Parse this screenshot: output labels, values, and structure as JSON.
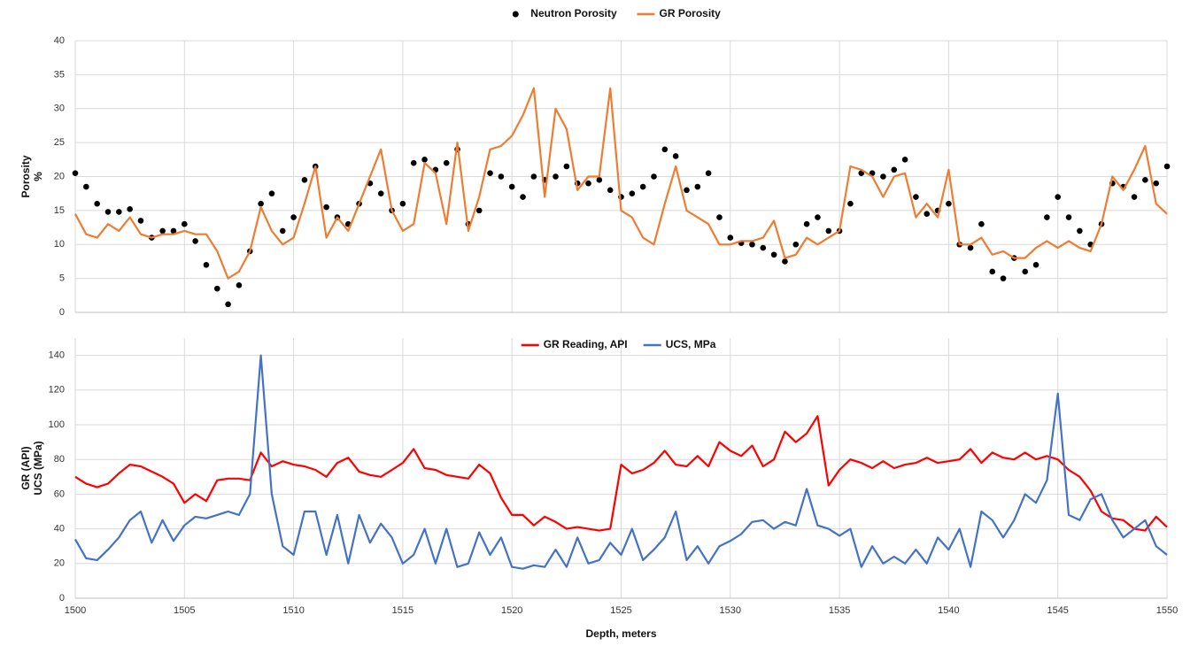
{
  "chart_data": [
    {
      "type": "line",
      "y_label": "Porosity",
      "y_unit": "%",
      "legend": "top-outside",
      "grid": true,
      "xlim": [
        1500,
        1550
      ],
      "xticks": [
        1500,
        1505,
        1510,
        1515,
        1520,
        1525,
        1530,
        1535,
        1540,
        1545,
        1550
      ],
      "ylim": [
        0,
        40
      ],
      "yticks": [
        0,
        5,
        10,
        15,
        20,
        25,
        30,
        35,
        40
      ],
      "x": [
        1500,
        1500.5,
        1501,
        1501.5,
        1502,
        1502.5,
        1503,
        1503.5,
        1504,
        1504.5,
        1505,
        1505.5,
        1506,
        1506.5,
        1507,
        1507.5,
        1508,
        1508.5,
        1509,
        1509.5,
        1510,
        1510.5,
        1511,
        1511.5,
        1512,
        1512.5,
        1513,
        1513.5,
        1514,
        1514.5,
        1515,
        1515.5,
        1516,
        1516.5,
        1517,
        1517.5,
        1518,
        1518.5,
        1519,
        1519.5,
        1520,
        1520.5,
        1521,
        1521.5,
        1522,
        1522.5,
        1523,
        1523.5,
        1524,
        1524.5,
        1525,
        1525.5,
        1526,
        1526.5,
        1527,
        1527.5,
        1528,
        1528.5,
        1529,
        1529.5,
        1530,
        1530.5,
        1531,
        1531.5,
        1532,
        1532.5,
        1533,
        1533.5,
        1534,
        1534.5,
        1535,
        1535.5,
        1536,
        1536.5,
        1537,
        1537.5,
        1538,
        1538.5,
        1539,
        1539.5,
        1540,
        1540.5,
        1541,
        1541.5,
        1542,
        1542.5,
        1543,
        1543.5,
        1544,
        1544.5,
        1545,
        1545.5,
        1546,
        1546.5,
        1547,
        1547.5,
        1548,
        1548.5,
        1549,
        1549.5,
        1550
      ],
      "series": [
        {
          "name": "Neutron Porosity",
          "color": "#000000",
          "style": "markers",
          "values": [
            20.5,
            18.5,
            16,
            14.8,
            14.8,
            15.2,
            13.5,
            11,
            12,
            12,
            13,
            10.5,
            7,
            3.5,
            1.2,
            4,
            9,
            16,
            17.5,
            12,
            14,
            19.5,
            21.5,
            15.5,
            14,
            13,
            16,
            19,
            17.5,
            15,
            16,
            22,
            22.5,
            21,
            22,
            24,
            13,
            15,
            20.5,
            20,
            18.5,
            17,
            20,
            19.5,
            20,
            21.5,
            19,
            19,
            19.5,
            18,
            17,
            17.5,
            18.5,
            20,
            24,
            23,
            18,
            18.5,
            20.5,
            14,
            11,
            10.2,
            10,
            9.5,
            8.5,
            7.5,
            10,
            13,
            14,
            12,
            12,
            16,
            20.5,
            20.5,
            20,
            21,
            22.5,
            17,
            14.5,
            15,
            16,
            10,
            9.5,
            13,
            6,
            5,
            8,
            6,
            7,
            14,
            17,
            14,
            12,
            10,
            13,
            19,
            18.5,
            17,
            19.5,
            19,
            21.5
          ]
        },
        {
          "name": "GR Porosity",
          "color": "#ed7d31",
          "style": "line",
          "values": [
            14.5,
            11.5,
            11,
            13,
            12,
            14,
            11.5,
            11,
            11.5,
            11.5,
            12,
            11.5,
            11.5,
            9,
            5,
            6,
            9,
            15.5,
            12,
            10,
            11,
            16,
            21.5,
            11,
            14,
            12,
            16,
            20,
            24,
            15,
            12,
            13,
            22,
            20.5,
            13,
            25,
            12,
            17,
            24,
            24.5,
            26,
            29,
            33,
            17,
            30,
            27,
            18,
            20,
            20,
            33,
            15,
            14,
            11,
            10,
            16,
            21.5,
            15,
            14,
            13,
            10,
            10,
            10.5,
            10.5,
            11,
            13.5,
            8,
            8.5,
            11,
            10,
            11,
            12,
            21.5,
            21,
            20,
            17,
            20,
            20.5,
            14,
            16,
            14,
            21,
            10,
            10,
            11,
            8.5,
            9,
            8,
            8,
            9.5,
            10.5,
            9.5,
            10.5,
            9.5,
            9,
            13,
            20,
            18,
            21,
            24.5,
            16,
            14.5
          ]
        }
      ]
    },
    {
      "type": "line",
      "y_label": "GR (API)",
      "y_label2": "UCS (MPa)",
      "x_label": "Depth, meters",
      "legend": "top-inside",
      "grid": true,
      "xlim": [
        1500,
        1550
      ],
      "xticks": [
        1500,
        1505,
        1510,
        1515,
        1520,
        1525,
        1530,
        1535,
        1540,
        1545,
        1550
      ],
      "ylim": [
        0,
        150
      ],
      "yticks": [
        0,
        20,
        40,
        60,
        80,
        100,
        120,
        140
      ],
      "x": [
        1500,
        1500.5,
        1501,
        1501.5,
        1502,
        1502.5,
        1503,
        1503.5,
        1504,
        1504.5,
        1505,
        1505.5,
        1506,
        1506.5,
        1507,
        1507.5,
        1508,
        1508.5,
        1509,
        1509.5,
        1510,
        1510.5,
        1511,
        1511.5,
        1512,
        1512.5,
        1513,
        1513.5,
        1514,
        1514.5,
        1515,
        1515.5,
        1516,
        1516.5,
        1517,
        1517.5,
        1518,
        1518.5,
        1519,
        1519.5,
        1520,
        1520.5,
        1521,
        1521.5,
        1522,
        1522.5,
        1523,
        1523.5,
        1524,
        1524.5,
        1525,
        1525.5,
        1526,
        1526.5,
        1527,
        1527.5,
        1528,
        1528.5,
        1529,
        1529.5,
        1530,
        1530.5,
        1531,
        1531.5,
        1532,
        1532.5,
        1533,
        1533.5,
        1534,
        1534.5,
        1535,
        1535.5,
        1536,
        1536.5,
        1537,
        1537.5,
        1538,
        1538.5,
        1539,
        1539.5,
        1540,
        1540.5,
        1541,
        1541.5,
        1542,
        1542.5,
        1543,
        1543.5,
        1544,
        1544.5,
        1545,
        1545.5,
        1546,
        1546.5,
        1547,
        1547.5,
        1548,
        1548.5,
        1549,
        1549.5,
        1550
      ],
      "series": [
        {
          "name": "GR Reading, API",
          "color": "#ff0000",
          "style": "line",
          "values": [
            70,
            66,
            64,
            66,
            72,
            77,
            76,
            73,
            70,
            66,
            55,
            60,
            56,
            68,
            69,
            69,
            68,
            84,
            76,
            79,
            77,
            76,
            74,
            70,
            78,
            81,
            73,
            71,
            70,
            74,
            78,
            86,
            75,
            74,
            71,
            70,
            69,
            77,
            72,
            58,
            48,
            48,
            42,
            47,
            44,
            40,
            41,
            40,
            39,
            40,
            77,
            72,
            74,
            78,
            85,
            77,
            76,
            82,
            76,
            90,
            85,
            82,
            88,
            76,
            80,
            96,
            90,
            95,
            105,
            65,
            74,
            80,
            78,
            75,
            79,
            75,
            77,
            78,
            81,
            78,
            79,
            80,
            86,
            78,
            84,
            81,
            80,
            84,
            80,
            82,
            80,
            74,
            70,
            62,
            50,
            46,
            45,
            40,
            39,
            47,
            41
          ]
        },
        {
          "name": "UCS, MPa",
          "color": "#4472c4",
          "style": "line",
          "values": [
            34,
            23,
            22,
            28,
            35,
            45,
            50,
            32,
            45,
            33,
            42,
            47,
            46,
            48,
            50,
            48,
            60,
            140,
            60,
            30,
            25,
            50,
            50,
            25,
            48,
            20,
            48,
            32,
            43,
            35,
            20,
            25,
            40,
            20,
            40,
            18,
            20,
            38,
            25,
            35,
            18,
            17,
            19,
            18,
            28,
            18,
            35,
            20,
            22,
            32,
            25,
            40,
            22,
            28,
            35,
            50,
            22,
            30,
            20,
            30,
            33,
            37,
            44,
            45,
            40,
            44,
            42,
            63,
            42,
            40,
            36,
            40,
            18,
            30,
            20,
            24,
            20,
            28,
            20,
            35,
            28,
            40,
            18,
            50,
            45,
            35,
            45,
            60,
            55,
            68,
            118,
            48,
            45,
            57,
            60,
            45,
            35,
            40,
            45,
            30,
            25
          ]
        }
      ]
    }
  ]
}
